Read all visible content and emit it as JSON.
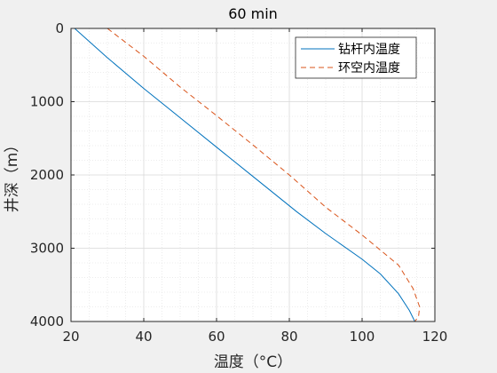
{
  "chart_data": {
    "type": "line",
    "title": "60 min",
    "xlabel": "温度（°C）",
    "ylabel": "井深（m）",
    "xlim": [
      20,
      120
    ],
    "ylim": [
      0,
      4000
    ],
    "y_reversed": true,
    "grid": "minor-dotted",
    "xticks": [
      20,
      40,
      60,
      80,
      100,
      120
    ],
    "yticks": [
      0,
      1000,
      2000,
      3000,
      4000
    ],
    "xtick_labels": [
      "20",
      "40",
      "60",
      "80",
      "100",
      "120"
    ],
    "ytick_labels": [
      "0",
      "1000",
      "2000",
      "3000",
      "4000"
    ],
    "legend": "top-right",
    "series": [
      {
        "name": "钻杆内温度",
        "color": "#0072bd",
        "style": "solid",
        "x": [
          21,
          30,
          40,
          50,
          60,
          70,
          80,
          82,
          90,
          100,
          105,
          110,
          113,
          114.5
        ],
        "y": [
          0,
          400,
          820,
          1220,
          1620,
          2020,
          2420,
          2500,
          2800,
          3150,
          3350,
          3620,
          3850,
          4000
        ]
      },
      {
        "name": "环空内温度",
        "color": "#d95319",
        "style": "dashed",
        "x": [
          30,
          40,
          50,
          60,
          70,
          80,
          90,
          100,
          110,
          114,
          115.8,
          115.5,
          114.5
        ],
        "y": [
          0,
          380,
          800,
          1190,
          1590,
          2000,
          2440,
          2820,
          3230,
          3550,
          3800,
          3930,
          4000
        ]
      }
    ]
  }
}
